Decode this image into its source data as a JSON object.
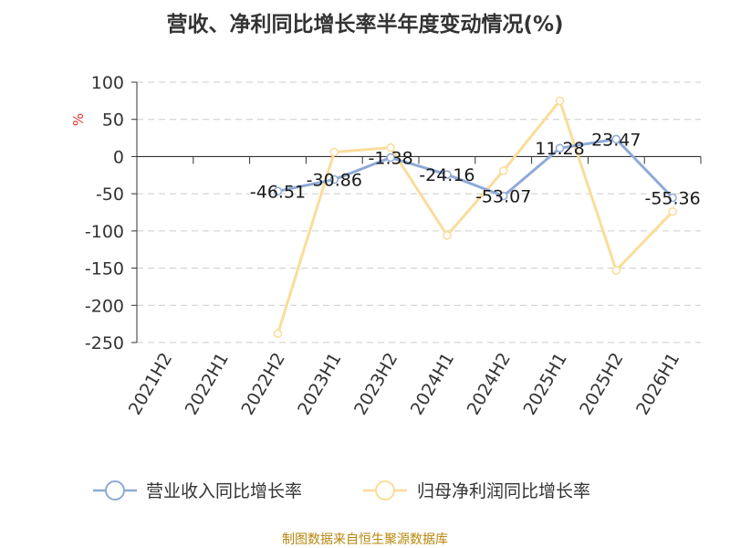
{
  "chart_data": {
    "type": "line",
    "title": "营收、净利同比增长率半年度变动情况(%)",
    "ylabel": "%",
    "ylim": [
      -250,
      100
    ],
    "yticks": [
      100,
      50,
      0,
      -50,
      -100,
      -150,
      -200,
      -250
    ],
    "grid": true,
    "legend_position": "bottom",
    "categories": [
      "2021H2",
      "2022H1",
      "2022H2",
      "2023H1",
      "2023H2",
      "2024H1",
      "2024H2",
      "2025H1",
      "2025H2",
      "2026H1"
    ],
    "series": [
      {
        "name": "营业收入同比增长率",
        "color": "#8eaad6",
        "values": [
          null,
          null,
          -46.51,
          -30.86,
          -1.38,
          -24.16,
          -53.07,
          11.28,
          23.47,
          -55.36
        ],
        "labels": [
          "",
          "",
          "-46.51",
          "-30.86",
          "-1.38",
          "-24.16",
          "-53.07",
          "11.28",
          "23.47",
          "-55.36"
        ]
      },
      {
        "name": "归母净利润同比增长率",
        "color": "#fbdc9a",
        "values": [
          null,
          null,
          -238,
          6,
          12,
          -106,
          -19,
          75,
          -153,
          -74
        ]
      }
    ]
  },
  "footer": {
    "source": "制图数据来自恒生聚源数据库"
  }
}
